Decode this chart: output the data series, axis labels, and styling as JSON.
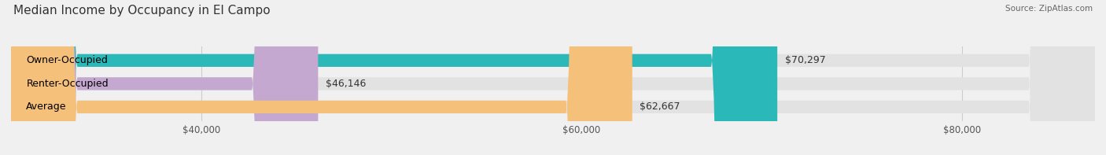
{
  "title": "Median Income by Occupancy in El Campo",
  "source": "Source: ZipAtlas.com",
  "categories": [
    "Owner-Occupied",
    "Renter-Occupied",
    "Average"
  ],
  "values": [
    70297,
    46146,
    62667
  ],
  "bar_colors": [
    "#2ab8b8",
    "#c4a8d0",
    "#f5c07a"
  ],
  "bar_labels": [
    "$70,297",
    "$46,146",
    "$62,667"
  ],
  "xlim": [
    30000,
    87000
  ],
  "xticks": [
    40000,
    60000,
    80000
  ],
  "xtick_labels": [
    "$40,000",
    "$60,000",
    "$80,000"
  ],
  "background_color": "#f0f0f0",
  "bar_bg_color": "#e2e2e2",
  "title_fontsize": 11,
  "label_fontsize": 9,
  "tick_fontsize": 8.5
}
